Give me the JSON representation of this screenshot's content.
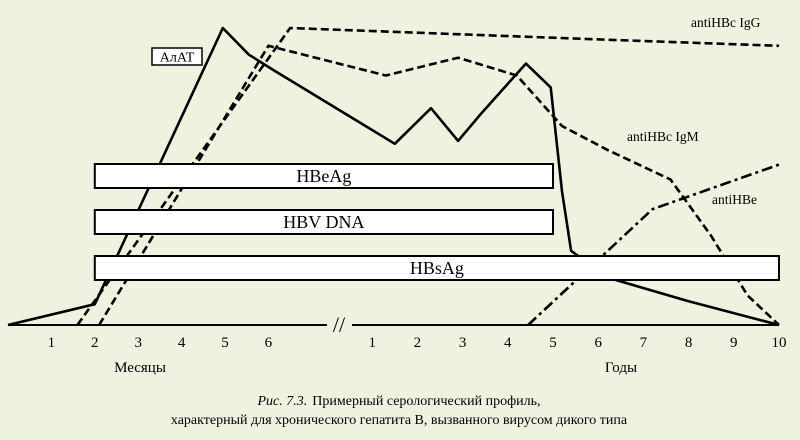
{
  "chart_data": {
    "type": "line",
    "title": "",
    "xlabel": "",
    "ylabel": "",
    "axis_sections": [
      {
        "unit": "Месяцы",
        "ticks": [
          "1",
          "2",
          "3",
          "4",
          "5",
          "6"
        ]
      },
      {
        "unit": "Годы",
        "ticks": [
          "1",
          "2",
          "3",
          "4",
          "5",
          "6",
          "7",
          "8",
          "9",
          "10"
        ]
      }
    ],
    "break_marker": "//",
    "series": [
      {
        "name": "АлАТ",
        "style": "solid",
        "points": [
          {
            "sec": 0,
            "x": 0,
            "y": 0
          },
          {
            "sec": 0,
            "x": 2.0,
            "y": 7
          },
          {
            "sec": 0,
            "x": 4.95,
            "y": 100
          },
          {
            "sec": 0,
            "x": 5.55,
            "y": 91
          },
          {
            "sec": 0,
            "x": 6.1,
            "y": 86
          },
          {
            "sec": 1,
            "x": 1.5,
            "y": 61
          },
          {
            "sec": 1,
            "x": 2.3,
            "y": 73
          },
          {
            "sec": 1,
            "x": 2.9,
            "y": 62
          },
          {
            "sec": 1,
            "x": 3.4,
            "y": 71
          },
          {
            "sec": 1,
            "x": 4.4,
            "y": 88
          },
          {
            "sec": 1,
            "x": 4.95,
            "y": 80
          },
          {
            "sec": 1,
            "x": 5.2,
            "y": 45
          },
          {
            "sec": 1,
            "x": 5.4,
            "y": 25
          },
          {
            "sec": 1,
            "x": 6.2,
            "y": 16
          },
          {
            "sec": 1,
            "x": 8.0,
            "y": 8
          },
          {
            "sec": 1,
            "x": 10.0,
            "y": 0
          }
        ]
      },
      {
        "name": "antiHBc IgG",
        "style": "dashed",
        "points": [
          {
            "sec": 0,
            "x": 1.6,
            "y": 0
          },
          {
            "sec": 0,
            "x": 6.5,
            "y": 100
          },
          {
            "sec": 1,
            "x": 6.3,
            "y": 96
          },
          {
            "sec": 1,
            "x": 10.0,
            "y": 94
          }
        ]
      },
      {
        "name": "antiHBc IgM",
        "style": "dashed",
        "points": [
          {
            "sec": 0,
            "x": 2.1,
            "y": 0
          },
          {
            "sec": 0,
            "x": 6.0,
            "y": 94
          },
          {
            "sec": 1,
            "x": 1.3,
            "y": 84
          },
          {
            "sec": 1,
            "x": 2.9,
            "y": 90
          },
          {
            "sec": 1,
            "x": 4.2,
            "y": 84
          },
          {
            "sec": 1,
            "x": 5.2,
            "y": 67
          },
          {
            "sec": 1,
            "x": 6.2,
            "y": 59
          },
          {
            "sec": 1,
            "x": 7.6,
            "y": 49
          },
          {
            "sec": 1,
            "x": 8.5,
            "y": 30
          },
          {
            "sec": 1,
            "x": 9.3,
            "y": 10
          },
          {
            "sec": 1,
            "x": 10.0,
            "y": 0
          }
        ]
      },
      {
        "name": "antiHBe",
        "style": "dash-dot",
        "points": [
          {
            "sec": 1,
            "x": 4.45,
            "y": 0
          },
          {
            "sec": 1,
            "x": 7.2,
            "y": 39
          },
          {
            "sec": 1,
            "x": 10.0,
            "y": 54
          }
        ]
      }
    ],
    "bands": [
      {
        "name": "HBeAg",
        "start": {
          "sec": 0,
          "x": 2.0
        },
        "end": {
          "sec": 1,
          "x": 5.0
        }
      },
      {
        "name": "HBV DNA",
        "start": {
          "sec": 0,
          "x": 2.0
        },
        "end": {
          "sec": 1,
          "x": 5.0
        }
      },
      {
        "name": "HBsAg",
        "start": {
          "sec": 0,
          "x": 2.0
        },
        "end": {
          "sec": 1,
          "x": 10.0
        }
      }
    ]
  },
  "caption": {
    "label": "Рис. 7.3.",
    "line1": "Примерный серологический профиль,",
    "line2": "характерный для хронического гепатита В, вызванного вирусом дикого типа"
  }
}
